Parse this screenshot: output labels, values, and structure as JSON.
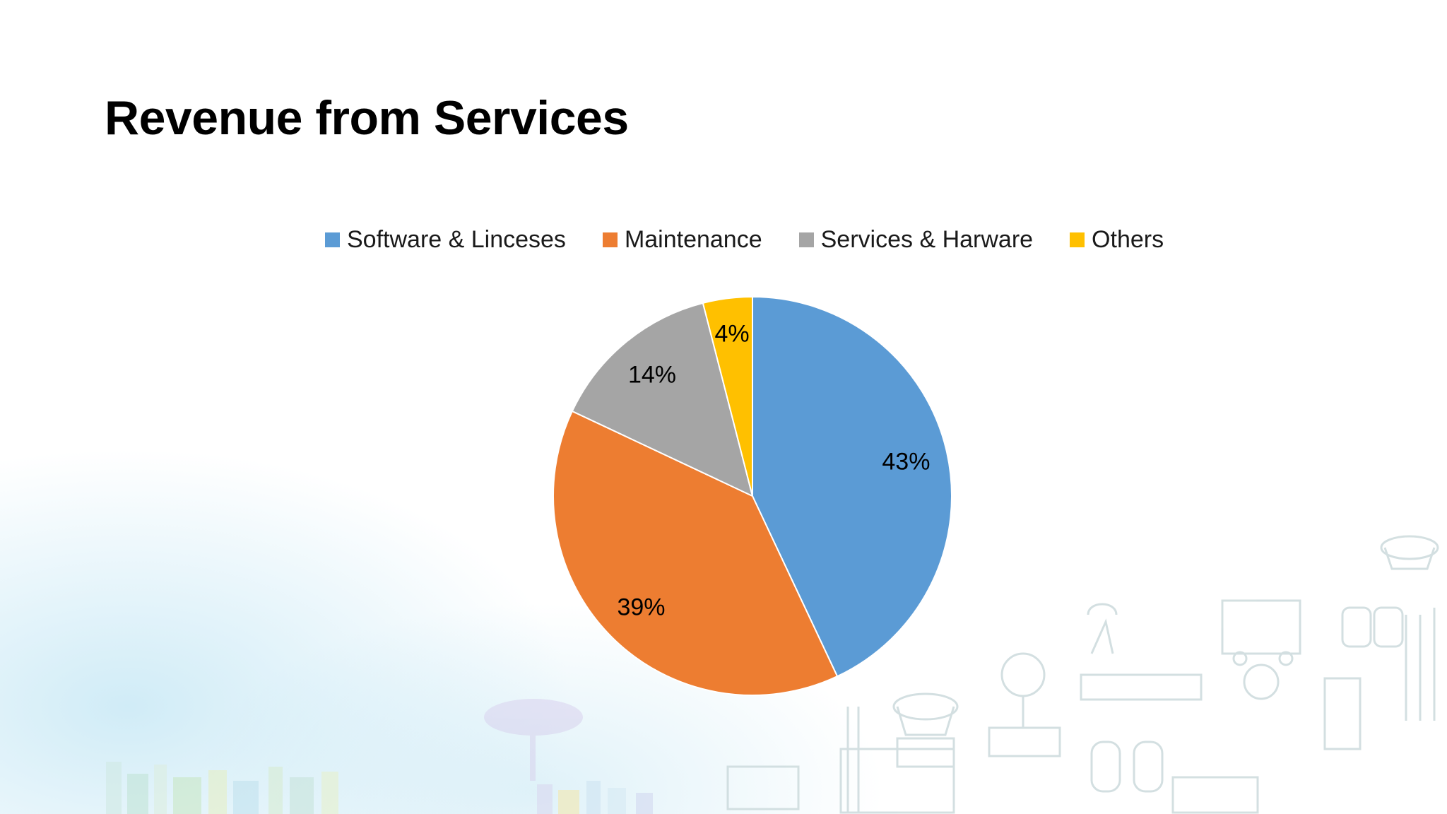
{
  "slide": {
    "title": "Revenue from Services"
  },
  "chart_data": {
    "type": "pie",
    "title": "",
    "categories": [
      "Software & Linceses",
      "Maintenance",
      "Services & Harware",
      "Others"
    ],
    "values": [
      43,
      39,
      14,
      4
    ],
    "data_labels": [
      "43%",
      "39%",
      "14%",
      "4%"
    ],
    "colors": [
      "#5b9bd5",
      "#ed7d31",
      "#a5a5a5",
      "#ffc000"
    ],
    "legend_position": "top",
    "start_angle": "12 o'clock, clockwise"
  }
}
